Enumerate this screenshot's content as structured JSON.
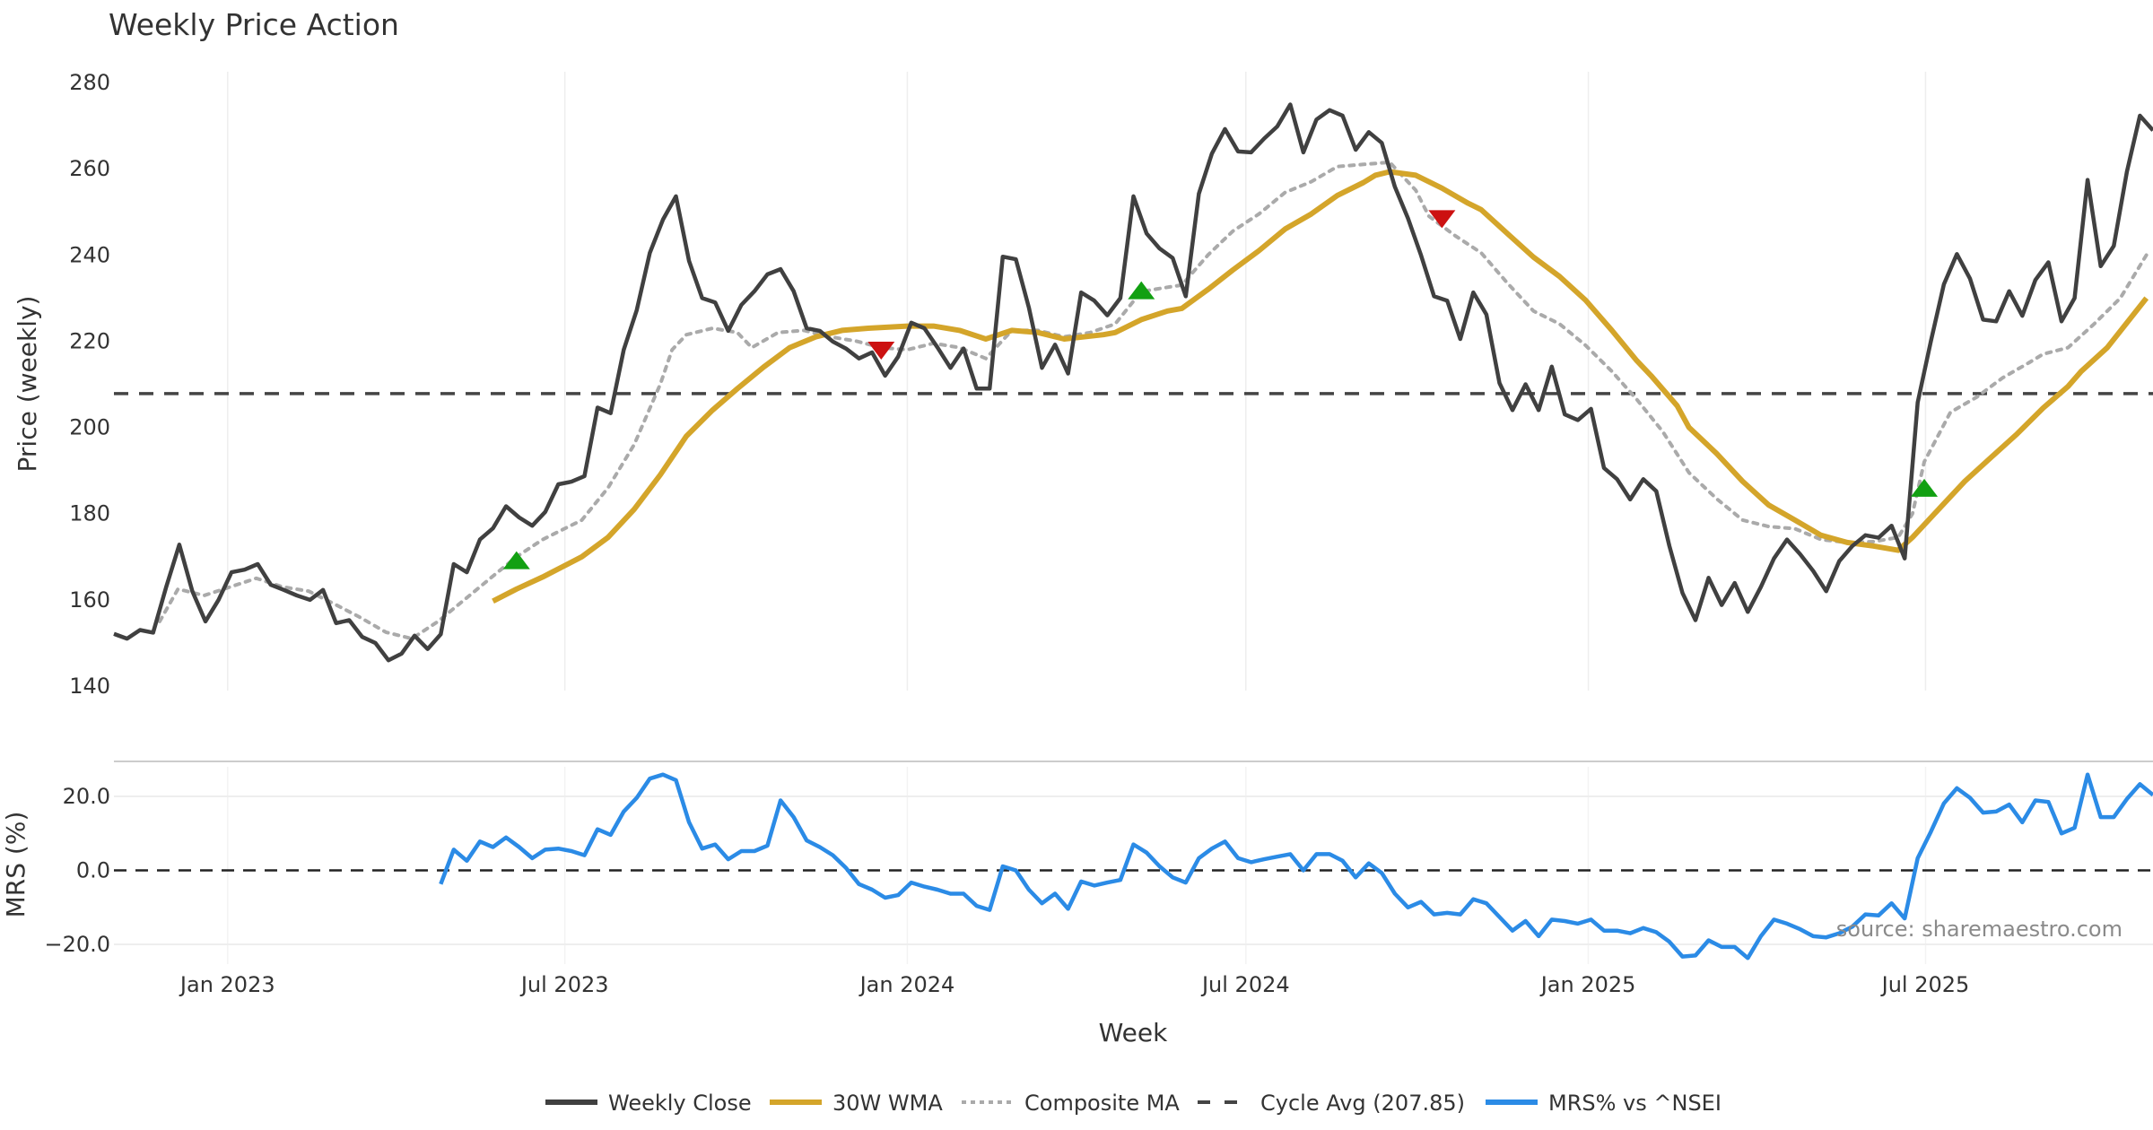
{
  "chart_data": {
    "type": "line",
    "title": "Weekly Price Action",
    "xlabel": "Week",
    "source": "source: sharemaestro.com",
    "x_ticks": [
      {
        "label": "Jan 2023",
        "week": 8.7
      },
      {
        "label": "Jul 2023",
        "week": 34.5
      },
      {
        "label": "Jan 2024",
        "week": 60.7
      },
      {
        "label": "Jul 2024",
        "week": 86.6
      },
      {
        "label": "Jan 2025",
        "week": 112.8
      },
      {
        "label": "Jul 2025",
        "week": 138.6
      }
    ],
    "price_panel": {
      "ylabel": "Price (weekly)",
      "ylim": [
        140,
        280
      ],
      "yticks": [
        "140",
        "160",
        "180",
        "200",
        "220",
        "240",
        "260",
        "280"
      ],
      "cycle_avg": 207.85,
      "weekly_close": [
        152.1,
        151,
        153,
        152.4,
        163,
        172.8,
        162,
        155,
        160,
        166.4,
        167,
        168.3,
        163.5,
        162.3,
        161,
        160,
        162.3,
        154.6,
        155.3,
        151.4,
        150,
        146,
        147.5,
        151.7,
        148.6,
        152,
        168.3,
        166.4,
        174,
        176.6,
        181.7,
        179.1,
        177.2,
        180.4,
        186.8,
        187.4,
        188.7,
        204.6,
        203.3,
        218,
        227.2,
        240.5,
        248.2,
        253.6,
        238.6,
        230,
        229,
        222.4,
        228.4,
        231.6,
        235.5,
        236.7,
        231.6,
        223,
        222.4,
        219.9,
        218.3,
        216,
        217.4,
        212,
        216.4,
        224.3,
        223,
        218.6,
        213.8,
        218.3,
        209,
        209,
        239.6,
        239,
        227.8,
        213.8,
        219.2,
        212.5,
        231.3,
        229.4,
        226,
        230,
        253.6,
        245,
        241.5,
        239.3,
        230.4,
        254.2,
        263.5,
        269.2,
        264,
        263.8,
        267,
        269.8,
        274.9,
        263.8,
        271.4,
        273.6,
        272.3,
        264.4,
        268.5,
        266,
        255.8,
        248.5,
        239.9,
        230.4,
        229.4,
        220.5,
        231.3,
        226.2,
        210.3,
        204,
        210,
        204,
        214.1,
        203,
        201.7,
        204.3,
        190.6,
        188,
        183.3,
        188,
        185.2,
        172.5,
        161.6,
        155.3,
        165.1,
        158.8,
        163.9,
        157.2,
        163,
        169.6,
        174,
        170.6,
        166.7,
        162,
        169,
        172.5,
        175,
        174.4,
        177.2,
        169.6,
        205.8,
        219.9,
        233.2,
        240.2,
        234.5,
        225,
        224.6,
        231.6,
        225.9,
        234.2,
        238.3,
        224.6,
        230,
        257.4,
        237.4,
        242.1,
        259.3,
        272.3,
        268.9
      ],
      "wma_30w": [
        [
          29,
          159.7
        ],
        [
          30.8,
          162.5
        ],
        [
          32.8,
          165.3
        ],
        [
          35.8,
          170
        ],
        [
          37.8,
          174.5
        ],
        [
          39.8,
          181
        ],
        [
          41.8,
          189
        ],
        [
          43.8,
          198
        ],
        [
          45.8,
          204
        ],
        [
          47.7,
          209
        ],
        [
          49.7,
          214
        ],
        [
          51.7,
          218.5
        ],
        [
          53.7,
          221
        ],
        [
          55.7,
          222.5
        ],
        [
          57.7,
          223
        ],
        [
          60.7,
          223.5
        ],
        [
          62.7,
          223.5
        ],
        [
          64.7,
          222.5
        ],
        [
          66.7,
          220.5
        ],
        [
          68.7,
          222.5
        ],
        [
          70.7,
          222
        ],
        [
          72.7,
          220.5
        ],
        [
          75.7,
          221.5
        ],
        [
          76.6,
          222
        ],
        [
          78.6,
          225
        ],
        [
          80.6,
          227
        ],
        [
          81.7,
          227.6
        ],
        [
          83.7,
          232
        ],
        [
          85.6,
          236.5
        ],
        [
          87.6,
          241
        ],
        [
          89.6,
          246
        ],
        [
          91.6,
          249.5
        ],
        [
          93.6,
          253.8
        ],
        [
          95.6,
          256.8
        ],
        [
          96.5,
          258.5
        ],
        [
          97.6,
          259.3
        ],
        [
          99.6,
          258.5
        ],
        [
          101.6,
          255.5
        ],
        [
          103.6,
          252
        ],
        [
          104.6,
          250.5
        ],
        [
          106.6,
          245
        ],
        [
          108.6,
          239.5
        ],
        [
          110.6,
          235
        ],
        [
          112.6,
          229.5
        ],
        [
          114.6,
          222.5
        ],
        [
          116.5,
          215.5
        ],
        [
          117.6,
          212
        ],
        [
          119.6,
          205
        ],
        [
          120.5,
          200
        ],
        [
          122.6,
          194
        ],
        [
          124.6,
          187.5
        ],
        [
          126.6,
          182
        ],
        [
          128.6,
          178.5
        ],
        [
          130.6,
          175
        ],
        [
          132.6,
          173.3
        ],
        [
          134.6,
          172.5
        ],
        [
          136.5,
          171.5
        ],
        [
          137.6,
          174.5
        ],
        [
          139.6,
          181
        ],
        [
          141.6,
          187.5
        ],
        [
          143.6,
          193
        ],
        [
          145.6,
          198.5
        ],
        [
          147.6,
          204.5
        ],
        [
          149.5,
          209.5
        ],
        [
          150.5,
          213
        ],
        [
          152.5,
          218.5
        ],
        [
          155.5,
          230
        ]
      ],
      "composite_ma": [
        [
          3.5,
          155
        ],
        [
          4.9,
          162.5
        ],
        [
          6.9,
          161
        ],
        [
          8.9,
          163
        ],
        [
          10.9,
          165
        ],
        [
          12.9,
          163
        ],
        [
          14.9,
          162
        ],
        [
          16.9,
          159
        ],
        [
          18.8,
          156
        ],
        [
          20.8,
          152.5
        ],
        [
          22.8,
          151
        ],
        [
          24.8,
          155
        ],
        [
          26.8,
          160
        ],
        [
          28.8,
          165
        ],
        [
          30.8,
          170
        ],
        [
          32.8,
          174
        ],
        [
          35.8,
          178.5
        ],
        [
          37.8,
          186
        ],
        [
          39.8,
          196
        ],
        [
          41.8,
          210
        ],
        [
          42.7,
          218
        ],
        [
          43.8,
          221.5
        ],
        [
          45.8,
          223
        ],
        [
          47.7,
          222
        ],
        [
          48.8,
          218.5
        ],
        [
          50.8,
          222
        ],
        [
          52.8,
          222.5
        ],
        [
          54.8,
          221
        ],
        [
          56.8,
          220
        ],
        [
          58.7,
          218.5
        ],
        [
          60.7,
          218
        ],
        [
          62.7,
          219.5
        ],
        [
          64.7,
          218.5
        ],
        [
          66.7,
          216
        ],
        [
          68.7,
          222.5
        ],
        [
          70.7,
          222.5
        ],
        [
          72.7,
          221
        ],
        [
          74.7,
          222
        ],
        [
          76.6,
          224
        ],
        [
          78.6,
          231.5
        ],
        [
          80.6,
          232.5
        ],
        [
          81.7,
          233
        ],
        [
          83.7,
          240
        ],
        [
          85.6,
          245.5
        ],
        [
          87.6,
          249.5
        ],
        [
          89.6,
          254.5
        ],
        [
          91.6,
          257
        ],
        [
          93.6,
          260.5
        ],
        [
          95.6,
          261
        ],
        [
          97.6,
          261.5
        ],
        [
          99.6,
          255
        ],
        [
          100.6,
          249
        ],
        [
          102.6,
          244.5
        ],
        [
          104.6,
          240.5
        ],
        [
          106.6,
          233.5
        ],
        [
          108.6,
          227
        ],
        [
          110.6,
          224
        ],
        [
          112.6,
          219
        ],
        [
          114.6,
          213
        ],
        [
          116.5,
          206.5
        ],
        [
          118.5,
          199
        ],
        [
          120.5,
          189.5
        ],
        [
          122.6,
          183.5
        ],
        [
          124.6,
          178.5
        ],
        [
          126.6,
          177
        ],
        [
          128.6,
          176.5
        ],
        [
          130.6,
          174
        ],
        [
          132.6,
          173.3
        ],
        [
          134.6,
          173.5
        ],
        [
          136.5,
          174.5
        ],
        [
          137.6,
          180
        ],
        [
          138.5,
          192
        ],
        [
          140.5,
          203.5
        ],
        [
          142.5,
          207
        ],
        [
          144.5,
          211.5
        ],
        [
          146.5,
          215
        ],
        [
          147.6,
          217
        ],
        [
          149.5,
          218.5
        ],
        [
          151.5,
          224
        ],
        [
          153.5,
          230
        ],
        [
          155.5,
          240
        ]
      ],
      "signals": [
        {
          "type": "buy",
          "week": 30.8,
          "value": 169
        },
        {
          "type": "sell",
          "week": 58.7,
          "value": 218
        },
        {
          "type": "buy",
          "week": 78.6,
          "value": 231.6
        },
        {
          "type": "sell",
          "week": 101.6,
          "value": 248.5
        },
        {
          "type": "buy",
          "week": 138.5,
          "value": 185.8
        }
      ]
    },
    "mrs_panel": {
      "ylabel": "MRS (%)",
      "ylim": [
        -24,
        28
      ],
      "yticks": [
        {
          "label": "−20.0",
          "value": -20
        },
        {
          "label": "0.0",
          "value": 0
        },
        {
          "label": "20.0",
          "value": 20
        }
      ],
      "start_week": 25,
      "values": [
        -3.7,
        5.6,
        2.6,
        7.8,
        6.3,
        8.9,
        6.3,
        3.3,
        5.6,
        5.9,
        5.2,
        4.1,
        11.1,
        9.6,
        15.9,
        19.6,
        24.8,
        25.9,
        24.4,
        13,
        5.9,
        7,
        3,
        5.2,
        5.2,
        6.7,
        18.9,
        14.4,
        8.1,
        6.3,
        4.1,
        0.7,
        -3.7,
        -5.2,
        -7.4,
        -6.7,
        -3.3,
        -4.4,
        -5.2,
        -6.3,
        -6.3,
        -9.6,
        -10.7,
        1.1,
        0,
        -5.2,
        -8.9,
        -6.3,
        -10.4,
        -3,
        -4.1,
        -3.3,
        -2.6,
        7,
        4.8,
        1.1,
        -1.9,
        -3.3,
        3.3,
        5.9,
        7.8,
        3.3,
        2.2,
        3,
        3.7,
        4.4,
        0,
        4.4,
        4.4,
        2.6,
        -1.9,
        1.9,
        -0.7,
        -6.3,
        -10,
        -8.5,
        -11.9,
        -11.5,
        -11.9,
        -7.8,
        -8.9,
        -12.6,
        -16.3,
        -13.7,
        -17.8,
        -13.3,
        -13.7,
        -14.4,
        -13.3,
        -16.3,
        -16.3,
        -17,
        -15.6,
        -16.7,
        -19.3,
        -23.3,
        -23,
        -18.9,
        -20.7,
        -20.7,
        -23.7,
        -17.8,
        -13.3,
        -14.4,
        -15.9,
        -17.8,
        -18.1,
        -17,
        -15.2,
        -11.9,
        -12.2,
        -8.9,
        -13,
        3.3,
        10.4,
        18.1,
        22.2,
        19.6,
        15.6,
        15.9,
        17.8,
        13,
        18.9,
        18.5,
        10,
        11.5,
        25.9,
        14.4,
        14.4,
        19.3,
        23.3,
        20.4
      ]
    },
    "legend": [
      {
        "label": "Weekly Close",
        "color": "#404040",
        "style": "solid"
      },
      {
        "label": "30W WMA",
        "color": "#d4a52a",
        "style": "solid"
      },
      {
        "label": "Composite MA",
        "color": "#aaaaaa",
        "style": "dotted"
      },
      {
        "label": "Cycle Avg (207.85)",
        "color": "#444444",
        "style": "dashed"
      },
      {
        "label": "MRS% vs ^NSEI",
        "color": "#2b8be6",
        "style": "solid"
      }
    ],
    "colors": {
      "buy": "#12a012",
      "sell": "#cc1111",
      "grid": "#eeeeee"
    }
  }
}
